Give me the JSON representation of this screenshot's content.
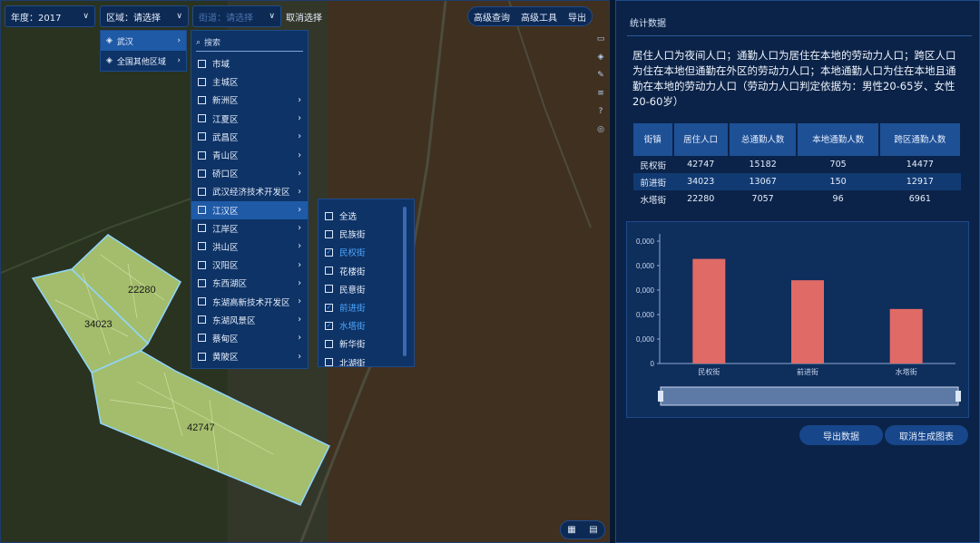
{
  "toolbar": {
    "year_label": "年度：2017",
    "region_label": "区域：请选择",
    "street_label": "街道：请选择",
    "cancel_select": "取消选择",
    "advanced_query": "高级查询",
    "advanced_tools": "高级工具",
    "export": "导出"
  },
  "region_dropdown": [
    "武汉",
    "全国其他区域"
  ],
  "district_dropdown": {
    "search_placeholder": "搜索",
    "items": [
      "市域",
      "主城区",
      "新洲区",
      "江夏区",
      "武昌区",
      "青山区",
      "硚口区",
      "武汉经济技术开发区",
      "江汉区",
      "江岸区",
      "洪山区",
      "汉阳区",
      "东西湖区",
      "东湖高新技术开发区",
      "东湖风景区",
      "蔡甸区",
      "黄陂区"
    ]
  },
  "street_dropdown": {
    "items": [
      {
        "label": "全选",
        "checked": false
      },
      {
        "label": "民族街",
        "checked": false
      },
      {
        "label": "民权街",
        "checked": true
      },
      {
        "label": "花楼街",
        "checked": false
      },
      {
        "label": "民意街",
        "checked": false
      },
      {
        "label": "前进街",
        "checked": true
      },
      {
        "label": "水塔街",
        "checked": true
      },
      {
        "label": "新华街",
        "checked": false
      },
      {
        "label": "北湖街",
        "checked": false
      }
    ]
  },
  "map": {
    "labels": [
      "22280",
      "34023",
      "42747"
    ]
  },
  "panel": {
    "title": "统计数据",
    "description": "居住人口为夜间人口；通勤人口为居住在本地的劳动力人口；跨区人口为住在本地但通勤在外区的劳动力人口；本地通勤人口为住在本地且通勤在本地的劳动力人口（劳动力人口判定依据为：男性20-65岁、女性20-60岁）",
    "table": {
      "headers": [
        "街镇",
        "居住人口",
        "总通勤人数",
        "本地通勤人数",
        "跨区通勤人数"
      ],
      "rows": [
        [
          "民权街",
          "42747",
          "15182",
          "705",
          "14477"
        ],
        [
          "前进街",
          "34023",
          "13067",
          "150",
          "12917"
        ],
        [
          "水塔街",
          "22280",
          "7057",
          "96",
          "6961"
        ]
      ]
    },
    "export_data": "导出数据",
    "cancel_chart": "取消生成图表"
  },
  "chart_data": {
    "type": "bar",
    "categories": [
      "民权街",
      "前进街",
      "水塔街"
    ],
    "values": [
      42747,
      34023,
      22280
    ],
    "ytick_labels": [
      "0",
      "0,000",
      "0,000",
      "0,000",
      "0,000",
      "0,000"
    ],
    "ylim": [
      0,
      50000
    ],
    "bar_color": "#e06a66"
  }
}
